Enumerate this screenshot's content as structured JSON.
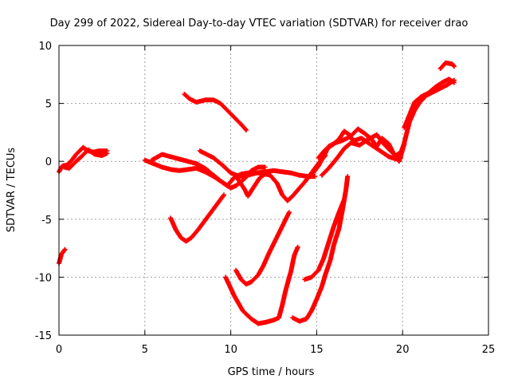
{
  "chart_data": {
    "type": "scatter",
    "title": "Day 299 of 2022, Sidereal Day-to-day VTEC variation (SDTVAR) for receiver drao",
    "xlabel": "GPS time / hours",
    "ylabel": "SDTVAR / TECUs",
    "xlim": [
      0,
      25
    ],
    "ylim": [
      -15,
      10
    ],
    "xticks": [
      0,
      5,
      10,
      15,
      20,
      25
    ],
    "yticks": [
      -15,
      -10,
      -5,
      0,
      5,
      10
    ],
    "grid": true,
    "marker": "plus",
    "color": "#ff0000",
    "tracks": [
      {
        "points": [
          [
            0.0,
            -8.8
          ],
          [
            0.15,
            -8.0
          ],
          [
            0.35,
            -7.6
          ]
        ]
      },
      {
        "points": [
          [
            0.0,
            -0.9
          ],
          [
            0.2,
            -0.4
          ],
          [
            0.5,
            -0.3
          ],
          [
            0.8,
            0.2
          ],
          [
            1.0,
            0.6
          ],
          [
            1.2,
            0.9
          ],
          [
            1.4,
            1.2
          ],
          [
            1.7,
            0.9
          ],
          [
            2.0,
            0.8
          ],
          [
            2.3,
            0.9
          ],
          [
            2.8,
            0.9
          ]
        ]
      },
      {
        "points": [
          [
            0.3,
            -0.5
          ],
          [
            0.6,
            -0.6
          ],
          [
            1.0,
            0.0
          ],
          [
            1.3,
            0.4
          ],
          [
            1.7,
            1.0
          ],
          [
            2.1,
            0.6
          ],
          [
            2.5,
            0.5
          ],
          [
            2.8,
            0.7
          ]
        ]
      },
      {
        "points": [
          [
            5.0,
            0.1
          ],
          [
            5.5,
            -0.2
          ],
          [
            6.0,
            -0.5
          ],
          [
            6.5,
            -0.7
          ],
          [
            7.0,
            -0.8
          ],
          [
            7.5,
            -0.7
          ],
          [
            8.0,
            -0.6
          ],
          [
            8.5,
            -0.9
          ],
          [
            9.0,
            -1.3
          ],
          [
            9.5,
            -1.8
          ],
          [
            10.0,
            -2.3
          ],
          [
            10.3,
            -2.1
          ],
          [
            10.8,
            -1.5
          ],
          [
            11.2,
            -0.8
          ],
          [
            11.6,
            -0.5
          ],
          [
            12.0,
            -0.5
          ]
        ]
      },
      {
        "points": [
          [
            5.4,
            0.1
          ],
          [
            6.0,
            0.6
          ],
          [
            6.5,
            0.4
          ],
          [
            7.0,
            0.2
          ],
          [
            7.5,
            0.0
          ],
          [
            8.0,
            -0.2
          ],
          [
            8.5,
            -0.6
          ],
          [
            9.0,
            -1.2
          ],
          [
            9.5,
            -1.8
          ],
          [
            9.8,
            -2.1
          ],
          [
            10.2,
            -1.4
          ],
          [
            10.6,
            -1.1
          ],
          [
            11.0,
            -1.0
          ],
          [
            11.5,
            -1.0
          ],
          [
            12.0,
            -0.9
          ],
          [
            12.5,
            -0.8
          ],
          [
            13.0,
            -0.9
          ],
          [
            13.5,
            -1.0
          ],
          [
            14.0,
            -1.2
          ],
          [
            14.5,
            -1.3
          ],
          [
            14.9,
            -1.3
          ]
        ]
      },
      {
        "points": [
          [
            8.2,
            0.9
          ],
          [
            8.6,
            0.6
          ],
          [
            9.0,
            0.3
          ],
          [
            9.5,
            -0.3
          ],
          [
            10.0,
            -1.0
          ],
          [
            10.5,
            -1.3
          ],
          [
            11.0,
            -1.2
          ],
          [
            11.5,
            -1.0
          ],
          [
            12.0,
            -1.0
          ]
        ]
      },
      {
        "points": [
          [
            7.3,
            5.8
          ],
          [
            7.6,
            5.4
          ],
          [
            8.0,
            5.1
          ],
          [
            8.5,
            5.3
          ],
          [
            9.0,
            5.3
          ],
          [
            9.4,
            5.0
          ],
          [
            9.8,
            4.4
          ],
          [
            10.2,
            3.8
          ],
          [
            10.6,
            3.2
          ],
          [
            10.9,
            2.7
          ]
        ]
      },
      {
        "points": [
          [
            6.5,
            -4.9
          ],
          [
            6.8,
            -5.9
          ],
          [
            7.1,
            -6.6
          ],
          [
            7.4,
            -6.9
          ],
          [
            7.7,
            -6.6
          ],
          [
            8.1,
            -5.9
          ],
          [
            8.5,
            -5.1
          ],
          [
            8.9,
            -4.3
          ],
          [
            9.3,
            -3.5
          ],
          [
            9.6,
            -2.9
          ]
        ]
      },
      {
        "points": [
          [
            10.4,
            -1.5
          ],
          [
            10.8,
            -2.4
          ],
          [
            11.0,
            -3.0
          ],
          [
            11.3,
            -2.3
          ],
          [
            11.7,
            -1.4
          ],
          [
            12.0,
            -1.1
          ],
          [
            12.3,
            -1.2
          ],
          [
            12.7,
            -1.9
          ],
          [
            13.0,
            -2.9
          ],
          [
            13.3,
            -3.4
          ],
          [
            13.6,
            -3.0
          ],
          [
            14.0,
            -2.3
          ],
          [
            14.3,
            -1.8
          ],
          [
            14.7,
            -1.0
          ],
          [
            15.1,
            -0.2
          ],
          [
            15.5,
            0.5
          ]
        ]
      },
      {
        "points": [
          [
            9.7,
            -10.0
          ],
          [
            10.2,
            -11.6
          ],
          [
            10.7,
            -12.9
          ],
          [
            11.2,
            -13.6
          ],
          [
            11.6,
            -14.0
          ],
          [
            12.0,
            -13.9
          ],
          [
            12.5,
            -13.7
          ],
          [
            12.8,
            -13.5
          ],
          [
            13.0,
            -12.4
          ],
          [
            13.2,
            -11.1
          ],
          [
            13.5,
            -9.5
          ],
          [
            13.7,
            -8.1
          ],
          [
            13.9,
            -7.4
          ]
        ]
      },
      {
        "points": [
          [
            10.3,
            -9.4
          ],
          [
            10.6,
            -10.2
          ],
          [
            10.9,
            -10.6
          ],
          [
            11.2,
            -10.4
          ],
          [
            11.6,
            -9.8
          ],
          [
            11.9,
            -9.0
          ],
          [
            12.2,
            -8.0
          ],
          [
            12.5,
            -7.1
          ],
          [
            12.8,
            -6.2
          ],
          [
            13.1,
            -5.3
          ],
          [
            13.4,
            -4.4
          ]
        ]
      },
      {
        "points": [
          [
            13.6,
            -13.5
          ],
          [
            14.0,
            -13.8
          ],
          [
            14.4,
            -13.6
          ],
          [
            14.7,
            -12.9
          ],
          [
            15.0,
            -11.9
          ],
          [
            15.3,
            -10.8
          ],
          [
            15.5,
            -9.8
          ],
          [
            15.8,
            -8.5
          ],
          [
            16.0,
            -7.2
          ],
          [
            16.3,
            -5.8
          ],
          [
            16.5,
            -4.2
          ],
          [
            16.7,
            -2.5
          ],
          [
            16.8,
            -1.3
          ]
        ]
      },
      {
        "points": [
          [
            14.3,
            -10.2
          ],
          [
            14.7,
            -10.0
          ],
          [
            15.1,
            -9.4
          ],
          [
            15.4,
            -8.4
          ],
          [
            15.7,
            -7.0
          ],
          [
            16.0,
            -5.6
          ],
          [
            16.3,
            -4.4
          ],
          [
            16.6,
            -3.3
          ]
        ]
      },
      {
        "points": [
          [
            14.8,
            -1.0
          ],
          [
            15.1,
            -0.4
          ],
          [
            15.4,
            0.4
          ],
          [
            15.7,
            1.3
          ],
          [
            16.1,
            1.6
          ],
          [
            16.5,
            1.8
          ],
          [
            16.9,
            2.1
          ],
          [
            17.2,
            1.8
          ],
          [
            17.6,
            2.0
          ],
          [
            18.0,
            1.6
          ],
          [
            18.4,
            1.2
          ],
          [
            18.8,
            0.8
          ],
          [
            19.2,
            0.4
          ],
          [
            19.6,
            0.2
          ],
          [
            19.9,
            0.3
          ]
        ]
      },
      {
        "points": [
          [
            15.1,
            0.3
          ],
          [
            15.5,
            1.0
          ],
          [
            15.9,
            1.4
          ],
          [
            16.3,
            1.9
          ],
          [
            16.6,
            2.6
          ],
          [
            17.0,
            2.2
          ],
          [
            17.4,
            2.8
          ],
          [
            17.8,
            2.4
          ],
          [
            18.2,
            1.9
          ],
          [
            18.5,
            1.3
          ],
          [
            18.8,
            2.0
          ],
          [
            19.2,
            1.5
          ],
          [
            19.5,
            0.6
          ],
          [
            19.8,
            0.0
          ],
          [
            20.1,
            1.5
          ]
        ]
      },
      {
        "points": [
          [
            15.3,
            -1.2
          ],
          [
            15.7,
            -0.6
          ],
          [
            16.2,
            0.3
          ],
          [
            16.6,
            1.1
          ],
          [
            17.0,
            1.6
          ],
          [
            17.5,
            1.4
          ],
          [
            18.0,
            1.9
          ],
          [
            18.5,
            2.3
          ],
          [
            18.9,
            1.5
          ],
          [
            19.3,
            0.9
          ],
          [
            19.6,
            0.5
          ],
          [
            19.9,
            0.8
          ]
        ]
      },
      {
        "points": [
          [
            19.8,
            0.3
          ],
          [
            20.1,
            1.6
          ],
          [
            20.4,
            3.4
          ],
          [
            20.7,
            4.4
          ],
          [
            21.0,
            5.1
          ],
          [
            21.4,
            5.7
          ],
          [
            21.8,
            6.0
          ],
          [
            22.2,
            6.3
          ],
          [
            22.6,
            6.6
          ],
          [
            23.0,
            7.0
          ]
        ]
      },
      {
        "points": [
          [
            20.1,
            2.9
          ],
          [
            20.4,
            4.0
          ],
          [
            20.7,
            5.1
          ],
          [
            21.1,
            5.6
          ],
          [
            21.5,
            5.9
          ],
          [
            21.9,
            6.4
          ],
          [
            22.3,
            6.8
          ],
          [
            22.7,
            7.1
          ],
          [
            23.0,
            6.8
          ]
        ]
      },
      {
        "points": [
          [
            22.2,
            8.0
          ],
          [
            22.5,
            8.5
          ],
          [
            22.9,
            8.4
          ],
          [
            23.0,
            8.2
          ]
        ]
      }
    ]
  }
}
